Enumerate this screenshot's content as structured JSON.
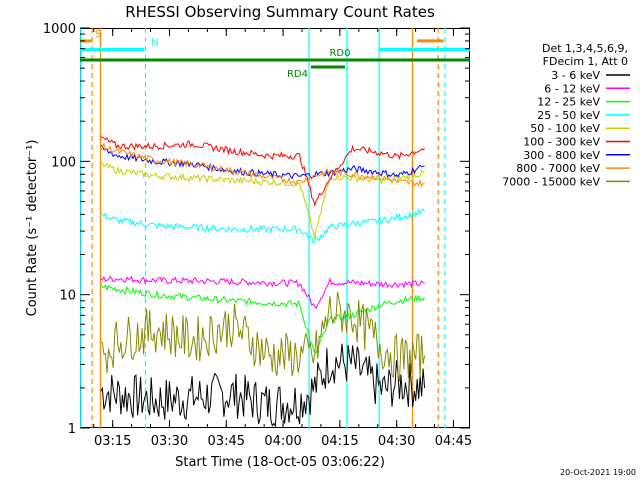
{
  "chart_data": {
    "type": "line",
    "title": "RHESSI Observing Summary Count Rates",
    "xlabel": "Start Time (18-Oct-05 03:06:22)",
    "ylabel": "Count Rate (s⁻¹ detector⁻¹)",
    "yscale": "log",
    "ylim": [
      1,
      1000
    ],
    "xlim_minutes": [
      0,
      103
    ],
    "x_tick_labels": [
      "03:15",
      "03:30",
      "03:45",
      "04:00",
      "04:15",
      "04:30",
      "04:45"
    ],
    "x_tick_minutes": [
      8.633,
      23.633,
      38.633,
      53.633,
      68.633,
      83.633,
      98.633
    ],
    "y_tick_labels": [
      "1",
      "10",
      "100",
      "1000"
    ],
    "y_tick_values": [
      1,
      10,
      100,
      1000
    ],
    "legend_header": [
      "Det 1,3,4,5,6,9,",
      "FDecim 1, Att 0"
    ],
    "legend_position": "right",
    "footer": "20-Oct-2021 19:00",
    "series": [
      {
        "name": "3 - 6 keV",
        "color": "#000000",
        "x": [
          5.5,
          10,
          20,
          30,
          40,
          50,
          58,
          62,
          66,
          72,
          80,
          84,
          91
        ],
        "y": [
          1.9,
          1.8,
          1.6,
          1.7,
          1.8,
          1.5,
          1.6,
          2.0,
          3.2,
          3.0,
          1.9,
          2.2,
          2.0
        ]
      },
      {
        "name": "6 - 12 keV",
        "color": "#ff00ff",
        "x": [
          5.5,
          10,
          20,
          30,
          40,
          50,
          58,
          62,
          66,
          72,
          80,
          84,
          91
        ],
        "y": [
          13,
          13.2,
          12.8,
          12.7,
          12.5,
          12.3,
          12.2,
          8,
          12.5,
          12.3,
          12.0,
          12.0,
          12.1
        ]
      },
      {
        "name": "12 - 25 keV",
        "color": "#00ff00",
        "x": [
          5.5,
          10,
          20,
          30,
          40,
          50,
          58,
          62,
          66,
          72,
          80,
          84,
          91
        ],
        "y": [
          11.5,
          11.0,
          10,
          9.5,
          9.0,
          8.7,
          8.5,
          3.5,
          6.5,
          7.0,
          8.5,
          9.0,
          9.5
        ]
      },
      {
        "name": "25 - 50 keV",
        "color": "#00ffff",
        "x": [
          5.5,
          10,
          20,
          30,
          40,
          50,
          58,
          62,
          66,
          72,
          80,
          84,
          91
        ],
        "y": [
          40,
          36,
          33,
          32,
          31,
          31,
          31,
          25,
          32,
          34,
          36,
          38,
          42
        ]
      },
      {
        "name": "50 - 100 keV",
        "color": "#cccc00",
        "x": [
          5.5,
          10,
          20,
          30,
          40,
          50,
          58,
          62,
          66,
          72,
          80,
          84,
          91
        ],
        "y": [
          95,
          85,
          78,
          75,
          72,
          70,
          68,
          27,
          77,
          75,
          72,
          74,
          82
        ]
      },
      {
        "name": "100 - 300 keV",
        "color": "#ff0000",
        "x": [
          5.5,
          10,
          20,
          30,
          40,
          50,
          58,
          62,
          66,
          72,
          80,
          84,
          91
        ],
        "y": [
          150,
          130,
          130,
          135,
          120,
          110,
          110,
          48,
          75,
          125,
          115,
          108,
          125
        ]
      },
      {
        "name": "300 - 800 keV",
        "color": "#0000ff",
        "x": [
          5.5,
          10,
          20,
          30,
          40,
          50,
          58,
          62,
          66,
          72,
          80,
          84,
          91
        ],
        "y": [
          125,
          110,
          100,
          95,
          85,
          80,
          77,
          80,
          82,
          88,
          82,
          78,
          92
        ]
      },
      {
        "name": "800 - 7000 keV",
        "color": "#ff8800",
        "x": [
          5.5,
          10,
          20,
          30,
          40,
          50,
          58,
          62,
          66,
          72,
          80,
          84,
          91
        ],
        "y": [
          130,
          118,
          102,
          95,
          85,
          76,
          70,
          78,
          84,
          80,
          75,
          70,
          68
        ]
      },
      {
        "name": "7000 - 15000 keV",
        "color": "#888800",
        "x": [
          5.5,
          10,
          20,
          30,
          40,
          50,
          58,
          62,
          66,
          72,
          80,
          84,
          91
        ],
        "y": [
          3.5,
          4.5,
          5.5,
          4.5,
          6.0,
          3.5,
          3.5,
          3.5,
          7.5,
          7.0,
          4.0,
          3.3,
          3.5
        ]
      }
    ],
    "annotations": [
      {
        "label": "S",
        "color": "#ff8800",
        "x_start": 0,
        "x_end": 3,
        "y": 800
      },
      {
        "label": "N",
        "color": "#00ffff",
        "x_start": 0,
        "x_end": 17,
        "y": 690
      },
      {
        "label": "",
        "color": "#00ffff",
        "x_start": 79,
        "x_end": 103,
        "y": 690
      },
      {
        "label": "",
        "color": "#ff8800",
        "x_start": 89,
        "x_end": 96,
        "y": 800
      },
      {
        "label": "RD0",
        "color": "#008800",
        "x_start": 0,
        "x_end": 103,
        "y": 575
      },
      {
        "label": "RD4",
        "color": "#008800",
        "x_start": 61,
        "x_end": 70,
        "y": 510
      }
    ],
    "vertical_markers": [
      {
        "x": 0.2,
        "color": "#00ffff",
        "style": "solid"
      },
      {
        "x": 3.2,
        "color": "#ff8800",
        "style": "dashed"
      },
      {
        "x": 5.4,
        "color": "#ff8800",
        "style": "solid"
      },
      {
        "x": 17.3,
        "color": "#00ffff",
        "style": "dashed"
      },
      {
        "x": 60.5,
        "color": "#00ffff",
        "style": "solid"
      },
      {
        "x": 70.5,
        "color": "#00ffff",
        "style": "solid"
      },
      {
        "x": 79,
        "color": "#00ffff",
        "style": "solid"
      },
      {
        "x": 87.8,
        "color": "#ff8800",
        "style": "solid"
      },
      {
        "x": 94.6,
        "color": "#ff8800",
        "style": "dashed"
      },
      {
        "x": 96.4,
        "color": "#00ffff",
        "style": "dashed"
      }
    ],
    "grid": false
  }
}
